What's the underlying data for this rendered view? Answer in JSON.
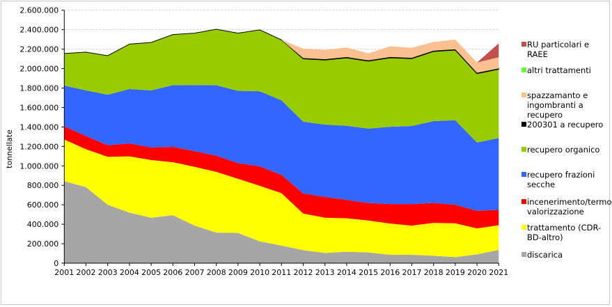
{
  "chart_data": {
    "type": "area",
    "stacked": true,
    "title": "",
    "xlabel": "",
    "ylabel": "tonnellate",
    "ylim": [
      0,
      2600000
    ],
    "y_ticks": [
      "0",
      "200.000",
      "400.000",
      "600.000",
      "800.000",
      "1.000.000",
      "1.200.000",
      "1.400.000",
      "1.600.000",
      "1.800.000",
      "2.000.000",
      "2.200.000",
      "2.400.000",
      "2.600.000"
    ],
    "grid": "horizontal dashed",
    "legend_placement": "right",
    "x": [
      "2001",
      "2002",
      "2003",
      "2004",
      "2005",
      "2006",
      "2007",
      "2008",
      "2009",
      "2010",
      "2011",
      "2012",
      "2013",
      "2014",
      "2015",
      "2016",
      "2017",
      "2018",
      "2019",
      "2020",
      "2021"
    ],
    "series": [
      {
        "name": "discarica",
        "color": "#A6A6A6",
        "values": [
          843000,
          781000,
          600000,
          519000,
          467000,
          493000,
          386000,
          314000,
          310000,
          224000,
          181000,
          133000,
          105000,
          117000,
          110000,
          86000,
          86000,
          76000,
          62000,
          90000,
          136000
        ]
      },
      {
        "name": "trattamento (CDR-BD-altro)",
        "color": "#FFFF00",
        "values": [
          428000,
          390000,
          493000,
          579000,
          593000,
          545000,
          604000,
          624000,
          557000,
          571000,
          538000,
          377000,
          362000,
          345000,
          328000,
          321000,
          300000,
          338000,
          348000,
          267000,
          254000
        ]
      },
      {
        "name": "incenerimento/termovalorizzazione",
        "color": "#FF0000",
        "values": [
          136000,
          136000,
          119000,
          133000,
          130000,
          157000,
          162000,
          167000,
          162000,
          200000,
          188000,
          207000,
          214000,
          188000,
          181000,
          200000,
          221000,
          205000,
          190000,
          181000,
          158000
        ]
      },
      {
        "name": "recupero frazioni secche",
        "color": "#3366FF",
        "values": [
          419000,
          469000,
          519000,
          559000,
          586000,
          634000,
          679000,
          724000,
          742000,
          772000,
          767000,
          738000,
          743000,
          762000,
          764000,
          795000,
          803000,
          841000,
          869000,
          702000,
          738000
        ]
      },
      {
        "name": "recupero organico",
        "color": "#99CC00",
        "values": [
          329000,
          393000,
          402000,
          462000,
          493000,
          521000,
          533000,
          576000,
          593000,
          631000,
          621000,
          645000,
          664000,
          698000,
          693000,
          708000,
          692000,
          716000,
          721000,
          708000,
          707000
        ]
      },
      {
        "name": "200301 a recupero",
        "color": "#000000",
        "values": [
          0,
          0,
          0,
          0,
          0,
          0,
          0,
          0,
          0,
          0,
          0,
          8000,
          8000,
          8000,
          8000,
          8000,
          8000,
          8000,
          8000,
          8000,
          8000
        ]
      },
      {
        "name": "spazzamanto e ingombranti a recupero",
        "color": "#FAC090",
        "values": [
          0,
          0,
          0,
          0,
          0,
          0,
          0,
          0,
          0,
          0,
          0,
          97000,
          97000,
          99000,
          73000,
          111000,
          104000,
          90000,
          100000,
          106000,
          116000
        ]
      },
      {
        "name": "altri trattamenti",
        "color": "#66FF33",
        "values": [
          0,
          0,
          0,
          0,
          0,
          0,
          0,
          0,
          0,
          0,
          0,
          0,
          0,
          0,
          0,
          0,
          0,
          0,
          0,
          0,
          0
        ]
      },
      {
        "name": "RU particolari e RAEE",
        "color": "#C0504D",
        "values": [
          0,
          0,
          0,
          0,
          0,
          0,
          0,
          0,
          0,
          0,
          0,
          0,
          0,
          0,
          0,
          0,
          0,
          0,
          0,
          0,
          143000
        ]
      }
    ],
    "legend_order": [
      "RU particolari e RAEE",
      "altri trattamenti",
      "spazzamanto e ingombranti a recupero",
      "200301 a recupero",
      "recupero organico",
      "recupero frazioni secche",
      "incenerimento/termovalorizzazione",
      "trattamento (CDR-BD-altro)",
      "discarica"
    ]
  }
}
